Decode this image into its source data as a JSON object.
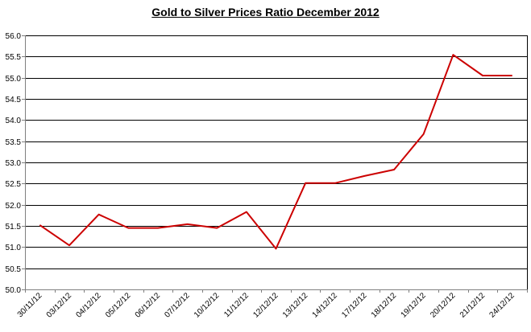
{
  "chart_data": {
    "type": "line",
    "title": "Gold to Silver Prices Ratio December 2012",
    "xlabel": "",
    "ylabel": "",
    "ylim": [
      50.0,
      56.0
    ],
    "ytick_step": 0.5,
    "ytick_labels": [
      "50.0",
      "50.5",
      "51.0",
      "51.5",
      "52.0",
      "52.5",
      "53.0",
      "53.5",
      "54.0",
      "54.5",
      "55.0",
      "55.5",
      "56.0"
    ],
    "grid": "horizontal",
    "legend": "none",
    "categories": [
      "30/11/12",
      "03/12/12",
      "04/12/12",
      "05/12/12",
      "06/12/12",
      "07/12/12",
      "10/12/12",
      "11/12/12",
      "12/12/12",
      "13/12/12",
      "14/12/12",
      "17/12/12",
      "18/12/12",
      "19/12/12",
      "20/12/12",
      "21/12/12",
      "24/12/12"
    ],
    "series": [
      {
        "values": [
          51.52,
          51.04,
          51.77,
          51.45,
          51.45,
          51.54,
          51.45,
          51.83,
          50.96,
          52.51,
          52.51,
          52.68,
          52.83,
          53.67,
          55.54,
          55.05,
          55.05
        ],
        "color": "#cc0000"
      }
    ],
    "colors": {
      "line": "#cc0000",
      "grid": "#000000",
      "axis": "#808080",
      "plot_border": "#000000"
    }
  }
}
